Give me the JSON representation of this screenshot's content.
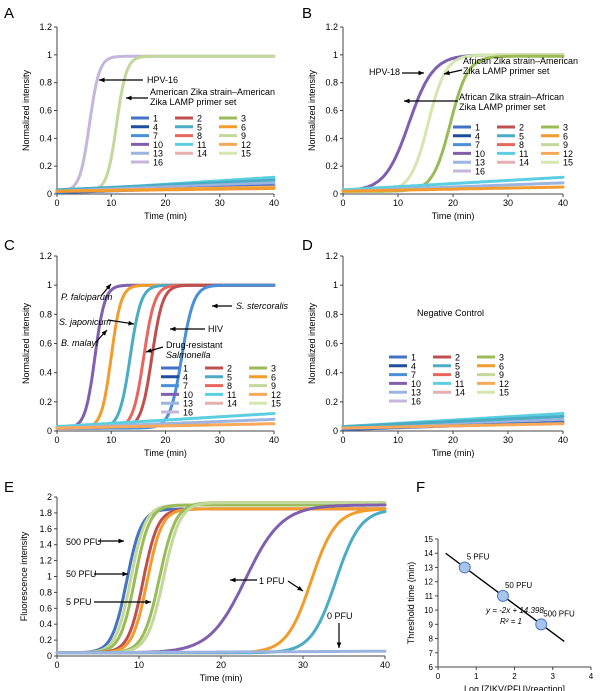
{
  "colors": {
    "c1": "#4472C4",
    "c2": "#C0504D",
    "c3": "#9BBB59",
    "c4": "#1F4E9E",
    "c5": "#4BACC6",
    "c6": "#F39C2E",
    "c7": "#4A90D9",
    "c8": "#E8665E",
    "c9": "#C3D89B",
    "c10": "#7F5FAE",
    "c11": "#5BCFE0",
    "c12": "#F8A859",
    "c13": "#9CB5E0",
    "c14": "#E7AFAF",
    "c15": "#D5E6B0",
    "c16": "#C6B6DB"
  },
  "chart_data": [
    {
      "panel": "A",
      "type": "line",
      "xlabel": "Time (min)",
      "ylabel": "Normalized intensity",
      "xlim": [
        0,
        40
      ],
      "ylim": [
        0,
        1.2
      ],
      "xticks": [
        0,
        10,
        20,
        30,
        40
      ],
      "yticks": [
        0,
        0.2,
        0.4,
        0.6,
        0.8,
        1,
        1.2
      ],
      "legend": [
        "1",
        "2",
        "3",
        "4",
        "5",
        "6",
        "7",
        "8",
        "9",
        "10",
        "11",
        "12",
        "13",
        "14",
        "15",
        "16"
      ],
      "series": [
        {
          "name": "16",
          "kind": "sigmoid",
          "midpoint": 6,
          "width": 0.9,
          "top": 0.99,
          "note": "HPV-16"
        },
        {
          "name": "9",
          "kind": "sigmoid",
          "midpoint": 11,
          "width": 0.9,
          "top": 0.99,
          "note": "American Zika strain–American Zika LAMP primer set"
        },
        {
          "name": "11",
          "kind": "baseline",
          "start": 0.02,
          "end": 0.12
        },
        {
          "name": "5",
          "kind": "baseline",
          "start": 0.03,
          "end": 0.1
        },
        {
          "name": "13",
          "kind": "baseline",
          "start": 0.02,
          "end": 0.08
        },
        {
          "name": "1",
          "kind": "baseline",
          "start": 0.01,
          "end": 0.06
        },
        {
          "name": "12",
          "kind": "baseline",
          "start": 0.02,
          "end": 0.05
        },
        {
          "name": "6",
          "kind": "baseline",
          "start": 0.02,
          "end": 0.04
        }
      ],
      "annotations": [
        "HPV-16",
        "American Zika strain–American",
        "Zika LAMP primer set"
      ]
    },
    {
      "panel": "B",
      "type": "line",
      "xlabel": "Time (min)",
      "ylabel": "Normalized intensity",
      "xlim": [
        0,
        40
      ],
      "ylim": [
        0,
        1.2
      ],
      "xticks": [
        0,
        10,
        20,
        30,
        40
      ],
      "yticks": [
        0,
        0.2,
        0.4,
        0.6,
        0.8,
        1,
        1.2
      ],
      "legend": [
        "1",
        "2",
        "3",
        "4",
        "5",
        "6",
        "7",
        "8",
        "9",
        "10",
        "11",
        "12",
        "13",
        "14",
        "15",
        "16"
      ],
      "series": [
        {
          "name": "10",
          "kind": "sigmoid",
          "midpoint": 12,
          "width": 2.2,
          "top": 1.0,
          "note": "HPV-18"
        },
        {
          "name": "15",
          "kind": "sigmoid",
          "midpoint": 15.5,
          "width": 1.6,
          "top": 1.0,
          "note": "African Zika strain–American Zika LAMP primer set"
        },
        {
          "name": "3",
          "kind": "sigmoid",
          "midpoint": 19.5,
          "width": 1.6,
          "top": 0.99,
          "note": "African Zika strain–African Zika LAMP primer set"
        },
        {
          "name": "11",
          "kind": "baseline",
          "start": 0.03,
          "end": 0.12
        },
        {
          "name": "13",
          "kind": "baseline",
          "start": 0.02,
          "end": 0.08
        },
        {
          "name": "6",
          "kind": "baseline",
          "start": 0.02,
          "end": 0.05
        }
      ],
      "annotations": [
        "HPV-18",
        "African Zika strain–American",
        "Zika LAMP primer set",
        "African Zika strain–African",
        "Zika LAMP primer set"
      ]
    },
    {
      "panel": "C",
      "type": "line",
      "xlabel": "Time (min)",
      "ylabel": "Normalized intensity",
      "xlim": [
        0,
        40
      ],
      "ylim": [
        0,
        1.2
      ],
      "xticks": [
        0,
        10,
        20,
        30,
        40
      ],
      "yticks": [
        0,
        0.2,
        0.4,
        0.6,
        0.8,
        1,
        1.2
      ],
      "legend": [
        "1",
        "2",
        "3",
        "4",
        "5",
        "6",
        "7",
        "8",
        "9",
        "10",
        "11",
        "12",
        "13",
        "14",
        "15",
        "16"
      ],
      "series": [
        {
          "name": "10",
          "kind": "sigmoid",
          "midpoint": 7,
          "width": 0.9,
          "top": 1.0,
          "note": "P. falciparum"
        },
        {
          "name": "6",
          "kind": "sigmoid",
          "midpoint": 10,
          "width": 0.9,
          "top": 1.0,
          "note": "S. japonicum"
        },
        {
          "name": "5",
          "kind": "sigmoid",
          "midpoint": 13.5,
          "width": 1.0,
          "top": 1.0,
          "note": "B. malayi"
        },
        {
          "name": "8",
          "kind": "sigmoid",
          "midpoint": 16,
          "width": 1.0,
          "top": 1.0,
          "note": "Drug-resistant Salmonella"
        },
        {
          "name": "2",
          "kind": "sigmoid",
          "midpoint": 17.5,
          "width": 1.0,
          "top": 1.0,
          "note": "HIV"
        },
        {
          "name": "7",
          "kind": "sigmoid",
          "midpoint": 23,
          "width": 1.1,
          "top": 1.0,
          "note": "S. stercoralis"
        },
        {
          "name": "11",
          "kind": "baseline",
          "start": 0.03,
          "end": 0.12
        },
        {
          "name": "13",
          "kind": "baseline",
          "start": 0.02,
          "end": 0.08
        },
        {
          "name": "12",
          "kind": "baseline",
          "start": 0.02,
          "end": 0.05
        }
      ],
      "annotations": [
        "P. falciparum",
        "S. japonicum",
        "B. malayi",
        "S. stercoralis",
        "HIV",
        "Drug-resistant",
        "Salmonella"
      ]
    },
    {
      "panel": "D",
      "type": "line",
      "xlabel": "Time (min)",
      "ylabel": "Normalized intensity",
      "xlim": [
        0,
        40
      ],
      "ylim": [
        0,
        1.2
      ],
      "xticks": [
        0,
        10,
        20,
        30,
        40
      ],
      "yticks": [
        0,
        0.2,
        0.4,
        0.6,
        0.8,
        1,
        1.2
      ],
      "legend": [
        "1",
        "2",
        "3",
        "4",
        "5",
        "6",
        "7",
        "8",
        "9",
        "10",
        "11",
        "12",
        "13",
        "14",
        "15",
        "16"
      ],
      "series": [
        {
          "name": "11",
          "kind": "baseline",
          "start": 0.03,
          "end": 0.12
        },
        {
          "name": "13",
          "kind": "baseline",
          "start": 0.02,
          "end": 0.08
        },
        {
          "name": "5",
          "kind": "baseline",
          "start": 0.03,
          "end": 0.1
        },
        {
          "name": "1",
          "kind": "baseline",
          "start": 0.01,
          "end": 0.06
        },
        {
          "name": "12",
          "kind": "baseline",
          "start": 0.02,
          "end": 0.05
        }
      ],
      "annotations": [
        "Negative Control"
      ]
    },
    {
      "panel": "E",
      "type": "line",
      "xlabel": "Time (min)",
      "ylabel": "Fluorescence intensity",
      "xlim": [
        0,
        40
      ],
      "ylim": [
        0,
        2
      ],
      "xticks": [
        0,
        10,
        20,
        30,
        40
      ],
      "yticks": [
        0,
        0.2,
        0.4,
        0.6,
        0.8,
        1,
        1.2,
        1.4,
        1.6,
        1.8,
        2
      ],
      "series": [
        {
          "name": "500 PFU a",
          "color": "c1",
          "kind": "sigmoid",
          "midpoint": 8.5,
          "width": 0.9,
          "top": 1.85,
          "base": 0.04
        },
        {
          "name": "500 PFU b",
          "color": "c9",
          "kind": "sigmoid",
          "midpoint": 9.0,
          "width": 0.9,
          "top": 1.9,
          "base": 0.04
        },
        {
          "name": "500 PFU c",
          "color": "c3",
          "kind": "sigmoid",
          "midpoint": 9.5,
          "width": 0.9,
          "top": 1.9,
          "base": 0.04
        },
        {
          "name": "50 PFU a",
          "color": "c2",
          "kind": "sigmoid",
          "midpoint": 10.5,
          "width": 0.9,
          "top": 1.85,
          "base": 0.04
        },
        {
          "name": "50 PFU b",
          "color": "c6",
          "kind": "sigmoid",
          "midpoint": 11.0,
          "width": 0.9,
          "top": 1.85,
          "base": 0.04
        },
        {
          "name": "5 PFU a",
          "color": "c3",
          "kind": "sigmoid",
          "midpoint": 12.5,
          "width": 1.0,
          "top": 1.93,
          "base": 0.04
        },
        {
          "name": "5 PFU b",
          "color": "c9",
          "kind": "sigmoid",
          "midpoint": 13.0,
          "width": 1.0,
          "top": 1.93,
          "base": 0.04
        },
        {
          "name": "1 PFU a",
          "color": "c10",
          "kind": "sigmoid",
          "midpoint": 23,
          "width": 2.2,
          "top": 1.9,
          "base": 0.04
        },
        {
          "name": "1 PFU b",
          "color": "c6",
          "kind": "sigmoid",
          "midpoint": 31,
          "width": 1.5,
          "top": 1.85,
          "base": 0.04
        },
        {
          "name": "1 PFU c",
          "color": "c5",
          "kind": "sigmoid",
          "midpoint": 34,
          "width": 1.5,
          "top": 1.85,
          "base": 0.04
        },
        {
          "name": "0 PFU",
          "color": "c13",
          "kind": "baseline",
          "start": 0.04,
          "end": 0.06
        }
      ],
      "annotations": [
        "500 PFU",
        "50 PFU",
        "5 PFU",
        "1 PFU",
        "0 PFU"
      ]
    },
    {
      "panel": "F",
      "type": "scatter",
      "xlabel": "Log [ZIKV(PFU)/reaction]",
      "ylabel": "Threshold time (min)",
      "xlim": [
        0,
        4
      ],
      "ylim": [
        6,
        15
      ],
      "xticks": [
        0,
        1,
        2,
        3,
        4
      ],
      "yticks": [
        6,
        7,
        8,
        9,
        10,
        11,
        12,
        13,
        14,
        15
      ],
      "points": [
        {
          "x": 0.699,
          "y": 13,
          "label": "5 PFU"
        },
        {
          "x": 1.699,
          "y": 11,
          "label": "50 PFU"
        },
        {
          "x": 2.699,
          "y": 9,
          "label": "500 PFU"
        }
      ],
      "fit": {
        "slope": -2,
        "intercept": 14.398,
        "x_from": 0.2,
        "x_to": 3.3
      },
      "equation": "y = -2x + 14.398",
      "r2": "R² = 1"
    }
  ],
  "panel_labels": [
    "A",
    "B",
    "C",
    "D",
    "E",
    "F"
  ]
}
